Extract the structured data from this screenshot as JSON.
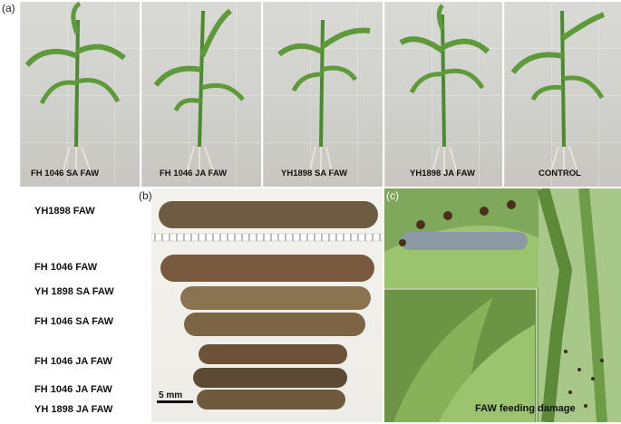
{
  "panel_a": {
    "letter": "(a)",
    "plants": [
      {
        "caption": "FH 1046   SA FAW"
      },
      {
        "caption": "FH 1046   JA FAW"
      },
      {
        "caption": "YH1898   SA FAW"
      },
      {
        "caption": "YH1898   JA FAW"
      },
      {
        "caption": "CONTROL"
      }
    ]
  },
  "panel_b": {
    "letter": "(b)",
    "larvae_labels": [
      "YH1898   FAW",
      "FH 1046   FAW",
      "YH 1898   SA FAW",
      "FH 1046   SA FAW",
      "FH 1046   JA FAW",
      "FH 1046   JA FAW",
      "YH 1898   JA FAW"
    ],
    "scale_bar": "5 mm"
  },
  "panel_c": {
    "letter": "(c)",
    "caption": "FAW feeding damage"
  },
  "colors": {
    "leaf": "#5e9a3a",
    "leaf_dark": "#3f7a26",
    "larva": "#6b5a3e",
    "background_photo": "#d3d3cf"
  }
}
